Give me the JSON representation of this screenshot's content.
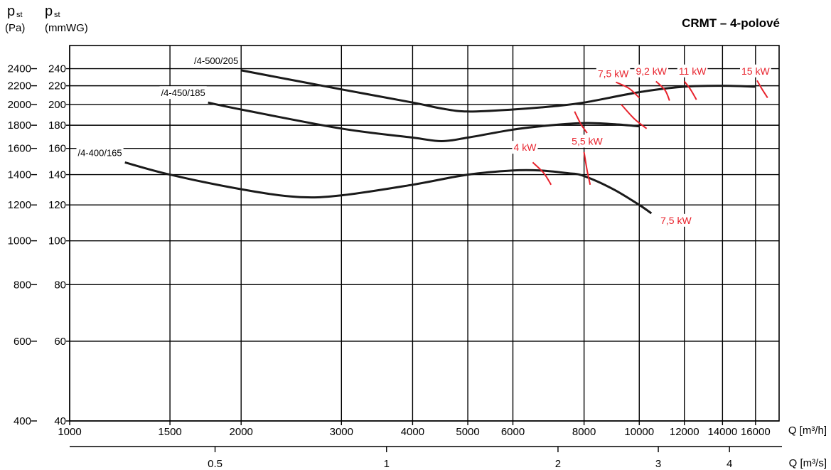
{
  "title": "CRMT – 4-polové",
  "chart_data": {
    "type": "line",
    "title": "CRMT – 4-polové",
    "y_axis_left": {
      "label_symbol": "p",
      "label_sub": "st",
      "label_unit": "(Pa)",
      "scale": "log",
      "ticks": [
        400,
        600,
        800,
        1000,
        1200,
        1400,
        1600,
        1800,
        2000,
        2200,
        2400
      ]
    },
    "y_axis_right": {
      "label_symbol": "p",
      "label_sub": "st",
      "label_unit": "(mmWG)",
      "scale": "log",
      "ticks": [
        40,
        60,
        80,
        100,
        120,
        140,
        160,
        180,
        200,
        220,
        240
      ]
    },
    "ylim_mmWG": [
      40,
      270
    ],
    "x_axis_top": {
      "label": "Q [m³/h]",
      "scale": "log",
      "range": [
        1000,
        17600
      ],
      "ticks": [
        1000,
        1500,
        2000,
        3000,
        4000,
        5000,
        6000,
        8000,
        10000,
        12000,
        14000,
        16000
      ]
    },
    "x_axis_bottom": {
      "label": "Q [m³/s]",
      "scale": "log",
      "ticks": [
        0.5,
        1,
        2,
        3,
        4
      ]
    },
    "grid": true,
    "series": [
      {
        "name": "/4-500/205",
        "unit_x": "m3/h",
        "unit_y": "mmWG",
        "points": [
          [
            2000,
            238
          ],
          [
            3000,
            216
          ],
          [
            4000,
            202
          ],
          [
            4500,
            196
          ],
          [
            5000,
            193
          ],
          [
            6000,
            195
          ],
          [
            7000,
            198
          ],
          [
            8000,
            202
          ],
          [
            10000,
            213
          ],
          [
            12000,
            219
          ],
          [
            14000,
            220
          ],
          [
            16000,
            219
          ]
        ]
      },
      {
        "name": "/4-450/185",
        "unit_x": "m3/h",
        "unit_y": "mmWG",
        "points": [
          [
            1750,
            202
          ],
          [
            2000,
            195
          ],
          [
            3000,
            177
          ],
          [
            4000,
            169
          ],
          [
            4500,
            166
          ],
          [
            5000,
            169
          ],
          [
            6000,
            176
          ],
          [
            7000,
            180
          ],
          [
            8000,
            182
          ],
          [
            9000,
            181
          ],
          [
            10000,
            179
          ]
        ]
      },
      {
        "name": "/4-400/165",
        "unit_x": "m3/h",
        "unit_y": "mmWG",
        "points": [
          [
            1250,
            149
          ],
          [
            1500,
            140
          ],
          [
            2000,
            130
          ],
          [
            2500,
            125
          ],
          [
            3000,
            126
          ],
          [
            4000,
            133
          ],
          [
            5000,
            140
          ],
          [
            6000,
            143
          ],
          [
            6700,
            143
          ],
          [
            7500,
            141
          ],
          [
            8000,
            139
          ],
          [
            9000,
            130
          ],
          [
            10000,
            120
          ],
          [
            10500,
            115
          ]
        ]
      }
    ],
    "power_labels": [
      {
        "text": "7,5 kW",
        "x": 9000,
        "y": 230,
        "anchor": "middle"
      },
      {
        "text": "9,2 kW",
        "x": 10500,
        "y": 233,
        "anchor": "middle"
      },
      {
        "text": "11 kW",
        "x": 12400,
        "y": 233,
        "anchor": "middle"
      },
      {
        "text": "15 kW",
        "x": 16000,
        "y": 233,
        "anchor": "middle"
      },
      {
        "text": "4 kW",
        "x": 6300,
        "y": 158,
        "anchor": "middle"
      },
      {
        "text": "5,5 kW",
        "x": 8100,
        "y": 163,
        "anchor": "middle"
      },
      {
        "text": "7,5 kW",
        "x": 11600,
        "y": 109,
        "anchor": "middle"
      }
    ],
    "power_limit_arcs": [
      {
        "points": [
          [
            9100,
            224
          ],
          [
            9600,
            217
          ],
          [
            10000,
            207
          ]
        ]
      },
      {
        "points": [
          [
            10700,
            225
          ],
          [
            11100,
            215
          ],
          [
            11300,
            204
          ]
        ]
      },
      {
        "points": [
          [
            12000,
            225
          ],
          [
            12300,
            216
          ],
          [
            12600,
            205
          ]
        ]
      },
      {
        "points": [
          [
            16100,
            226
          ],
          [
            16400,
            217
          ],
          [
            16800,
            207
          ]
        ]
      },
      {
        "points": [
          [
            9300,
            200
          ],
          [
            9800,
            186
          ],
          [
            10300,
            177
          ]
        ]
      },
      {
        "points": [
          [
            7700,
            193
          ],
          [
            7900,
            181
          ],
          [
            8100,
            173
          ]
        ]
      },
      {
        "points": [
          [
            6500,
            149
          ],
          [
            6800,
            141
          ],
          [
            7000,
            133
          ]
        ]
      },
      {
        "points": [
          [
            8000,
            157
          ],
          [
            8100,
            143
          ],
          [
            8200,
            133
          ]
        ]
      }
    ]
  }
}
